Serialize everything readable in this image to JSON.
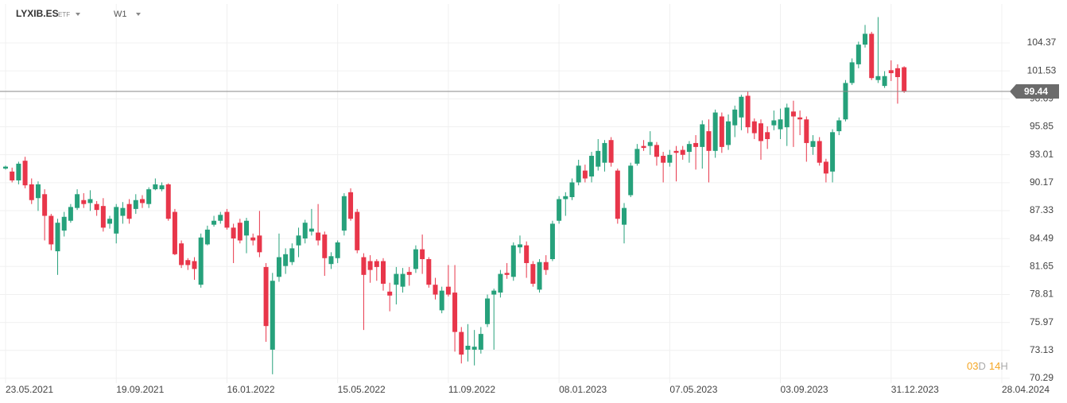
{
  "header": {
    "symbol": "LYXIB.ES",
    "asset_class": "ETF",
    "interval": "W1"
  },
  "countdown": {
    "days": "03",
    "day_unit": "D",
    "hours": "14",
    "hour_unit": "H"
  },
  "chart_data": {
    "type": "candlestick",
    "up_color": "#26a17b",
    "down_color": "#e8364a",
    "grid": true,
    "ylim": [
      69.8,
      108.33
    ],
    "yticks": [
      70.29,
      73.13,
      75.97,
      78.81,
      81.65,
      84.49,
      87.33,
      90.17,
      93.01,
      95.85,
      98.69,
      101.53,
      104.37
    ],
    "last_price": 99.44,
    "categories": [
      "23.05.2021",
      null,
      null,
      null,
      null,
      null,
      null,
      null,
      null,
      null,
      null,
      null,
      null,
      null,
      null,
      null,
      null,
      "19.09.2021",
      null,
      null,
      null,
      null,
      null,
      null,
      null,
      null,
      null,
      null,
      null,
      null,
      null,
      null,
      null,
      null,
      "16.01.2022",
      null,
      null,
      null,
      null,
      null,
      null,
      null,
      null,
      null,
      null,
      null,
      null,
      null,
      null,
      null,
      null,
      "15.05.2022",
      null,
      null,
      null,
      null,
      null,
      null,
      null,
      null,
      null,
      null,
      null,
      null,
      null,
      null,
      null,
      null,
      "11.09.2022",
      null,
      null,
      null,
      null,
      null,
      null,
      null,
      null,
      null,
      null,
      null,
      null,
      null,
      null,
      null,
      null,
      "08.01.2023",
      null,
      null,
      null,
      null,
      null,
      null,
      null,
      null,
      null,
      null,
      null,
      null,
      null,
      null,
      null,
      null,
      "07.05.2023",
      null,
      null,
      null,
      null,
      null,
      null,
      null,
      null,
      null,
      null,
      null,
      null,
      null,
      null,
      null,
      null,
      "03.09.2023",
      null,
      null,
      null,
      null,
      null,
      null,
      null,
      null,
      null,
      null,
      null,
      null,
      null,
      null,
      null,
      null,
      "31.12.2023",
      null,
      null,
      null,
      null,
      null,
      null,
      null,
      null,
      null,
      null,
      null,
      null,
      null,
      null,
      null,
      null,
      "28.04.2024"
    ],
    "open": [
      91.6,
      91.3,
      90.4,
      92.4,
      90.0,
      88.6,
      89.0,
      86.8,
      83.2,
      85.3,
      86.3,
      87.6,
      88.4,
      88.1,
      88.0,
      87.8,
      86.0,
      85.0,
      86.8,
      88.0,
      87.5,
      88.5,
      88.0,
      89.5,
      89.5,
      90.0,
      87.2,
      84.0,
      82.3,
      82.2,
      79.8,
      83.9,
      85.9,
      86.3,
      87.2,
      85.6,
      86.1,
      84.8,
      84.6,
      84.8,
      81.6,
      73.2,
      80.6,
      81.7,
      82.1,
      83.8,
      84.5,
      85.2,
      85.1,
      84.9,
      81.9,
      82.5,
      85.3,
      89.2,
      87.2,
      82.6,
      82.2,
      82.2,
      82.2,
      79.1,
      79.8,
      79.6,
      81.1,
      81.4,
      83.4,
      82.4,
      79.8,
      77.2,
      79.6,
      79.0,
      75.0,
      73.2,
      73.2,
      73.2,
      75.8,
      78.8,
      79.0,
      81.0,
      80.6,
      83.6,
      83.8,
      81.9,
      79.3,
      82.1,
      82.4,
      86.3,
      88.5,
      88.7,
      90.2,
      91.4,
      90.8,
      91.8,
      92.2,
      94.5,
      91.4,
      85.9,
      88.9,
      92.1,
      93.9,
      93.9,
      94.0,
      92.9,
      92.2,
      93.4,
      93.5,
      93.3,
      94.2,
      93.8,
      95.4,
      93.4,
      96.9,
      94.0,
      96.0,
      96.8,
      99.0,
      96.4,
      96.2,
      95.3,
      96.0,
      95.6,
      95.8,
      97.4,
      96.8,
      96.6,
      93.8,
      94.4,
      92.3,
      91.3,
      95.4,
      96.6,
      100.3,
      102.2,
      104.2,
      105.3,
      100.6,
      100.0,
      101.6,
      101.8,
      101.9,
      null,
      null,
      null,
      null,
      null,
      null,
      null,
      null,
      null,
      null,
      null,
      null,
      null,
      null,
      null
    ],
    "high": [
      91.9,
      91.7,
      92.3,
      92.8,
      90.6,
      90.3,
      89.5,
      87.0,
      86.5,
      87.2,
      88.0,
      89.5,
      89.1,
      89.4,
      88.3,
      88.6,
      86.8,
      88.0,
      88.2,
      88.5,
      89.0,
      88.9,
      89.7,
      90.6,
      90.2,
      90.1,
      87.5,
      84.3,
      82.5,
      82.6,
      85.0,
      85.8,
      86.8,
      87.2,
      87.5,
      86.0,
      86.5,
      86.6,
      85.0,
      87.3,
      82.0,
      81.0,
      85.0,
      83.5,
      84.0,
      85.6,
      86.4,
      87.5,
      88.0,
      85.2,
      83.1,
      84.3,
      89.1,
      89.6,
      87.5,
      83.0,
      82.8,
      82.4,
      82.5,
      80.0,
      81.6,
      81.5,
      81.6,
      83.8,
      84.9,
      82.6,
      80.5,
      79.6,
      81.8,
      81.8,
      75.5,
      75.8,
      75.2,
      75.5,
      78.8,
      79.4,
      81.3,
      82.0,
      84.1,
      84.8,
      84.2,
      82.2,
      82.4,
      82.8,
      86.3,
      88.8,
      89.2,
      90.6,
      92.5,
      92.0,
      93.3,
      94.6,
      94.5,
      94.8,
      91.6,
      88.1,
      92.2,
      94.1,
      94.5,
      95.4,
      94.3,
      93.3,
      93.5,
      93.9,
      93.9,
      94.4,
      95.0,
      96.5,
      96.6,
      97.6,
      97.3,
      97.1,
      98.0,
      99.1,
      99.4,
      96.7,
      96.6,
      95.9,
      97.5,
      97.7,
      98.2,
      98.5,
      97.5,
      96.9,
      95.0,
      94.8,
      92.6,
      95.6,
      96.8,
      100.6,
      102.8,
      104.5,
      106.2,
      105.5,
      107.0,
      101.5,
      102.6,
      102.2,
      102.0,
      null,
      null,
      null,
      null,
      null,
      null,
      null,
      null,
      null,
      null,
      null,
      null,
      null,
      null,
      null
    ],
    "low": [
      91.5,
      90.2,
      90.0,
      89.6,
      88.0,
      87.3,
      84.3,
      83.3,
      80.8,
      84.7,
      86.1,
      87.4,
      87.6,
      87.3,
      86.8,
      85.2,
      85.5,
      84.0,
      86.0,
      86.0,
      87.0,
      87.6,
      87.6,
      89.4,
      89.3,
      86.3,
      82.8,
      81.5,
      81.3,
      80.3,
      79.5,
      83.8,
      85.7,
      86.0,
      85.4,
      82.0,
      84.0,
      83.0,
      83.8,
      82.6,
      74.0,
      70.7,
      80.1,
      80.9,
      81.8,
      82.6,
      84.0,
      84.8,
      83.8,
      80.7,
      81.4,
      82.0,
      84.8,
      86.3,
      83.0,
      75.2,
      80.0,
      80.2,
      79.2,
      77.1,
      77.8,
      79.0,
      79.7,
      81.0,
      80.9,
      79.5,
      78.3,
      76.9,
      78.6,
      73.0,
      71.8,
      72.0,
      71.6,
      72.8,
      75.5,
      73.2,
      78.5,
      80.4,
      80.2,
      83.0,
      80.5,
      79.6,
      79.0,
      80.8,
      82.2,
      86.0,
      86.8,
      88.4,
      89.9,
      90.2,
      90.2,
      91.4,
      91.3,
      91.8,
      86.0,
      84.0,
      88.7,
      91.9,
      93.4,
      93.0,
      91.9,
      90.2,
      91.8,
      90.3,
      92.5,
      92.2,
      91.5,
      91.6,
      90.2,
      92.7,
      93.2,
      93.5,
      94.8,
      95.5,
      95.2,
      94.6,
      92.5,
      93.6,
      95.5,
      94.6,
      93.9,
      93.8,
      95.0,
      92.3,
      93.0,
      91.9,
      90.2,
      90.2,
      95.0,
      96.4,
      100.1,
      101.8,
      103.9,
      100.6,
      100.3,
      99.8,
      100.5,
      98.2,
      99.3,
      null,
      null,
      null,
      null,
      null,
      null,
      null,
      null,
      null,
      null,
      null,
      null,
      null,
      null,
      null
    ],
    "close": [
      91.8,
      90.4,
      92.1,
      89.9,
      88.4,
      90.0,
      86.8,
      83.9,
      86.1,
      86.7,
      87.7,
      89.0,
      88.0,
      88.5,
      87.4,
      85.6,
      86.5,
      87.7,
      87.6,
      86.5,
      88.4,
      88.1,
      89.5,
      90.0,
      89.9,
      86.5,
      82.9,
      81.8,
      81.8,
      81.4,
      84.6,
      85.4,
      86.3,
      86.9,
      85.6,
      84.5,
      84.3,
      86.3,
      84.3,
      83.1,
      75.6,
      80.2,
      82.6,
      82.9,
      83.5,
      84.8,
      86.1,
      85.5,
      84.3,
      82.5,
      82.7,
      84.1,
      88.8,
      86.5,
      83.3,
      80.8,
      81.3,
      81.6,
      79.9,
      78.7,
      80.9,
      80.9,
      80.8,
      83.4,
      82.4,
      79.8,
      78.8,
      79.2,
      78.8,
      75.0,
      72.7,
      73.6,
      73.5,
      74.8,
      78.4,
      79.2,
      80.9,
      80.8,
      83.8,
      83.9,
      82.0,
      79.9,
      82.1,
      81.3,
      86.0,
      88.5,
      88.8,
      90.2,
      91.9,
      90.6,
      92.9,
      93.4,
      94.2,
      92.2,
      86.5,
      87.6,
      91.9,
      93.6,
      93.7,
      94.3,
      92.8,
      92.2,
      93.0,
      93.2,
      93.0,
      94.1,
      93.8,
      96.1,
      93.4,
      97.3,
      93.8,
      96.4,
      97.6,
      98.9,
      95.8,
      95.2,
      94.4,
      94.6,
      96.5,
      96.6,
      97.8,
      96.9,
      96.6,
      94.2,
      94.4,
      92.2,
      91.1,
      95.3,
      96.5,
      100.3,
      102.4,
      104.2,
      105.3,
      100.8,
      101.0,
      101.0,
      101.3,
      100.9,
      99.44,
      null,
      null,
      null,
      null,
      null,
      null,
      null,
      null,
      null,
      null,
      null,
      null,
      null,
      null,
      null
    ]
  }
}
